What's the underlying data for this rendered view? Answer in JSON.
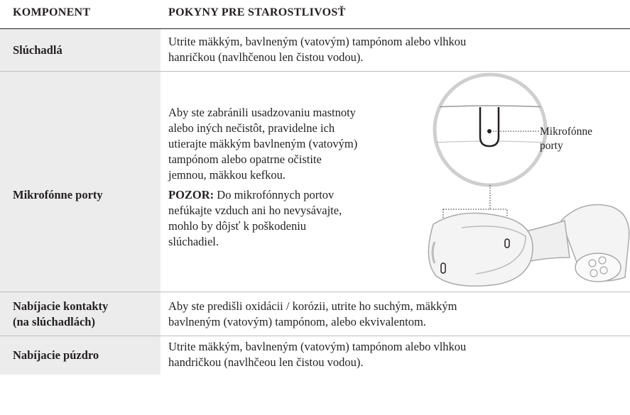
{
  "table": {
    "headers": [
      "KOMPONENT",
      "POKYNY PRE STAROSTLIVOSŤ"
    ],
    "rows": [
      {
        "component": [
          "Slúchadlá"
        ],
        "care": [
          "Utrite mäkkým, bavlneným (vatovým) tampónom alebo vlhkou",
          "hanričkou (navlhčenou len čistou vodou)."
        ]
      },
      {
        "component": [
          "Mikrofónne porty"
        ],
        "care": [
          "Aby ste zabránili usadzovaniu mastnoty",
          "alebo iných nečistôt, pravidelne ich",
          "utierajte mäkkým bavlneným (vatovým)",
          "tampónom alebo opatrne očistite",
          "jemnou, mäkkou kefkou."
        ],
        "warning_label": "POZOR:",
        "warning": [
          " Do mikrofónnych portov",
          "nefúkajte vzduch ani ho nevysávajte,",
          "mohlo by dôjsť k poškodeniu",
          "slúchadiel."
        ],
        "figure_label": [
          "Mikrofónne",
          "porty"
        ]
      },
      {
        "component": [
          "Nabíjacie kontakty",
          "(na slúchadlách)"
        ],
        "care": [
          "Aby ste predišli oxidácii / korózii, utrite ho suchým, mäkkým",
          "bavlneným (vatovým) tampónom, alebo ekvivalentom."
        ]
      },
      {
        "component": [
          "Nabíjacie púzdro"
        ],
        "care": [
          "Utrite mäkkým, bavlneným (vatovým) tampónom alebo vlhkou",
          "handričkou (navlhčeou len čistou vodou)."
        ]
      }
    ]
  }
}
